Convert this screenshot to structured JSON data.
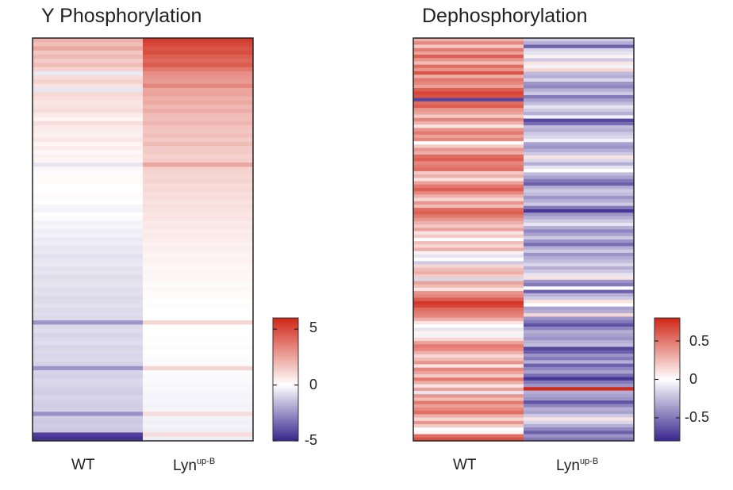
{
  "chart_data": [
    {
      "type": "heatmap",
      "title": "Y Phosphorylation",
      "columns": [
        {
          "label": "WT",
          "sup": ""
        },
        {
          "label": "Lyn",
          "sup": "up-B"
        }
      ],
      "colorbar": {
        "min": -5,
        "max": 6,
        "ticks": [
          5,
          0,
          -5
        ],
        "tick_labels": [
          "5",
          "0",
          "-5"
        ]
      },
      "colors": {
        "low": "#3b2a8f",
        "mid": "#ffffff",
        "high": "#d02a1a"
      },
      "rows_wt": [
        2.2,
        1.8,
        2.5,
        1.6,
        2.0,
        1.4,
        1.9,
        1.2,
        -0.5,
        1.0,
        1.3,
        0.8,
        -0.6,
        1.1,
        0.9,
        0.7,
        0.8,
        1.0,
        0.6,
        0.3,
        0.9,
        0.6,
        0.5,
        0.4,
        0.7,
        0.3,
        0.5,
        0.2,
        0.4,
        0.3,
        -0.6,
        0.2,
        0.1,
        0.15,
        0.1,
        0.05,
        0.0,
        0.1,
        -0.1,
        0.0,
        -0.2,
        -0.3,
        0.0,
        -0.1,
        -0.3,
        -0.2,
        -0.4,
        -0.3,
        -0.5,
        -0.4,
        -0.6,
        -0.5,
        -0.7,
        -0.6,
        -0.5,
        -0.7,
        -0.6,
        -0.8,
        -0.7,
        -0.6,
        -0.8,
        -0.7,
        -0.9,
        -0.8,
        -0.7,
        -0.9,
        -0.8,
        -0.9,
        -2.5,
        -0.9,
        -0.8,
        -1.0,
        -0.9,
        -0.8,
        -1.0,
        -0.9,
        -1.0,
        -0.9,
        -1.1,
        -2.5,
        -1.0,
        -1.1,
        -0.9,
        -1.0,
        -1.1,
        -1.2,
        -1.0,
        -1.1,
        -1.2,
        -1.1,
        -2.6,
        -1.2,
        -1.3,
        -1.2,
        -1.3,
        -4.5,
        -4.8
      ],
      "rows_lyn": [
        5.5,
        5.2,
        4.8,
        5.0,
        4.5,
        4.2,
        4.6,
        3.8,
        3.2,
        3.0,
        2.8,
        3.4,
        2.5,
        2.6,
        2.2,
        2.4,
        2.0,
        2.3,
        1.9,
        1.8,
        2.1,
        1.7,
        1.6,
        1.8,
        1.5,
        1.9,
        1.4,
        1.5,
        1.3,
        1.4,
        2.5,
        1.3,
        1.2,
        1.1,
        1.2,
        1.0,
        1.1,
        0.9,
        1.0,
        0.8,
        0.9,
        0.8,
        0.7,
        0.8,
        0.6,
        0.7,
        0.5,
        0.6,
        0.5,
        0.4,
        0.5,
        0.4,
        0.3,
        0.4,
        0.3,
        0.2,
        0.3,
        0.2,
        0.2,
        0.1,
        0.2,
        0.1,
        0.1,
        0.0,
        0.1,
        0.0,
        0.05,
        0.0,
        1.2,
        0.0,
        0.05,
        0.0,
        -0.05,
        0.0,
        -0.1,
        0.0,
        -0.05,
        -0.1,
        -0.1,
        1.2,
        -0.1,
        -0.15,
        -0.1,
        -0.2,
        -0.15,
        -0.2,
        -0.25,
        -0.2,
        -0.3,
        -0.25,
        1.0,
        -0.3,
        -0.35,
        -0.3,
        -0.4,
        1.0,
        -0.4
      ],
      "xlabel": "",
      "ylabel": ""
    },
    {
      "type": "heatmap",
      "title": "Dephosphorylation",
      "columns": [
        {
          "label": "WT",
          "sup": ""
        },
        {
          "label": "Lyn",
          "sup": "up-B"
        }
      ],
      "colorbar": {
        "min": -0.8,
        "max": 0.8,
        "ticks": [
          0.5,
          0,
          -0.5
        ],
        "tick_labels": [
          "0.5",
          "0",
          "-0.5"
        ]
      },
      "colors": {
        "low": "#3b2a8f",
        "mid": "#ffffff",
        "high": "#d02a1a"
      },
      "rows_wt": [
        0.3,
        0.45,
        0.2,
        0.5,
        0.35,
        0.6,
        0.4,
        0.25,
        0.55,
        0.4,
        0.65,
        0.3,
        0.5,
        0.45,
        0.35,
        0.6,
        0.7,
        0.65,
        -0.7,
        0.55,
        0.6,
        0.4,
        0.35,
        0.2,
        0.45,
        0.3,
        0.1,
        0.4,
        0.5,
        0.35,
        0.45,
        0.0,
        0.2,
        0.4,
        0.3,
        0.55,
        0.6,
        0.45,
        0.5,
        0.55,
        0.2,
        0.3,
        0.1,
        0.35,
        0.5,
        0.6,
        0.45,
        0.3,
        0.15,
        0.4,
        0.25,
        0.55,
        0.6,
        0.5,
        0.4,
        0.3,
        0.2,
        0.35,
        0.1,
        0.2,
        0.0,
        0.25,
        0.15,
        0.3,
        0.05,
        -0.1,
        0.0,
        -0.2,
        0.15,
        0.25,
        0.3,
        0.2,
        -0.15,
        0.35,
        0.25,
        0.1,
        0.4,
        0.45,
        0.6,
        0.75,
        0.7,
        0.55,
        0.5,
        0.45,
        0.3,
        0.1,
        0.0,
        -0.1,
        0.05,
        -0.05,
        0.15,
        0.35,
        0.5,
        0.45,
        0.3,
        0.15,
        0.25,
        0.4,
        0.1,
        0.45,
        0.35,
        0.2,
        0.5,
        0.3,
        0.1,
        0.35,
        -0.1,
        0.4,
        0.25,
        0.5,
        0.35,
        0.45,
        0.55,
        0.3,
        0.15,
        0.4,
        0.2,
        0.0,
        0.05,
        0.55,
        0.65
      ],
      "rows_lyn": [
        -0.2,
        -0.3,
        -0.6,
        -0.15,
        -0.1,
        0.05,
        -0.2,
        0.1,
        -0.05,
        0.15,
        -0.25,
        -0.3,
        -0.15,
        -0.4,
        -0.45,
        -0.3,
        -0.2,
        -0.5,
        -0.35,
        -0.25,
        -0.1,
        -0.2,
        -0.3,
        -0.05,
        -0.7,
        -0.55,
        -0.25,
        -0.3,
        -0.2,
        -0.15,
        -0.05,
        -0.35,
        -0.4,
        -0.3,
        -0.2,
        0.1,
        -0.15,
        -0.3,
        -0.1,
        0.0,
        -0.25,
        -0.35,
        -0.5,
        -0.6,
        -0.3,
        -0.2,
        -0.25,
        -0.4,
        -0.3,
        -0.2,
        -0.5,
        -0.75,
        -0.4,
        -0.3,
        -0.2,
        -0.1,
        -0.3,
        -0.45,
        -0.35,
        -0.2,
        -0.4,
        -0.55,
        -0.3,
        -0.2,
        -0.4,
        -0.3,
        -0.25,
        -0.15,
        -0.3,
        -0.2,
        -0.1,
        0.1,
        -0.4,
        -0.5,
        0.0,
        -0.6,
        -0.3,
        -0.2,
        0.1,
        0.0,
        -0.35,
        -0.3,
        0.15,
        -0.4,
        -0.5,
        -0.65,
        -0.45,
        -0.3,
        -0.35,
        -0.4,
        -0.3,
        -0.25,
        -0.7,
        -0.6,
        -0.4,
        -0.5,
        -0.3,
        -0.6,
        -0.45,
        -0.35,
        -0.55,
        -0.75,
        -0.5,
        -0.4,
        0.8,
        -0.3,
        -0.35,
        -0.4,
        -0.65,
        -0.45,
        -0.3,
        -0.35,
        -0.2,
        0.1,
        -0.15,
        -0.3,
        -0.45,
        -0.6,
        -0.4,
        -0.5
      ],
      "xlabel": "",
      "ylabel": ""
    }
  ]
}
